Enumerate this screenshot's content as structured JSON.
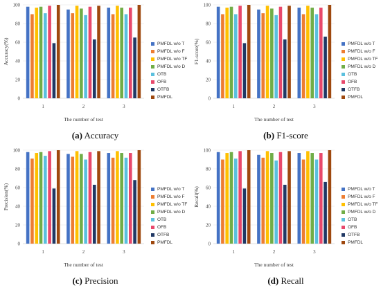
{
  "chart_data": [
    {
      "type": "bar",
      "caption_letter": "(a)",
      "caption_text": "Accuracy",
      "ylabel": "Accuracy(%)",
      "xlabel": "The number of test",
      "categories": [
        "1",
        "2",
        "3"
      ],
      "ylim": [
        0,
        100
      ],
      "yticks": [
        0,
        20,
        40,
        60,
        80,
        100
      ],
      "grid": true,
      "legend_position": "right",
      "series": [
        {
          "name": "PMFDL w/o T",
          "color": "#4472c4",
          "values": [
            98,
            95,
            97
          ]
        },
        {
          "name": "PMFDL w/o F",
          "color": "#ed7d31",
          "values": [
            90,
            91,
            90
          ]
        },
        {
          "name": "PMFDL w/o TF",
          "color": "#ffc000",
          "values": [
            97,
            99,
            99
          ]
        },
        {
          "name": "PMFDL w/o D",
          "color": "#70ad47",
          "values": [
            98,
            96,
            97
          ]
        },
        {
          "name": "OTB",
          "color": "#5bc0de",
          "values": [
            91,
            89,
            90
          ]
        },
        {
          "name": "OFB",
          "color": "#e8486b",
          "values": [
            99,
            98,
            97
          ]
        },
        {
          "name": "OTFB",
          "color": "#203864",
          "values": [
            59,
            63,
            65
          ]
        },
        {
          "name": "PMFDL",
          "color": "#9e480e",
          "values": [
            100,
            99,
            100
          ]
        }
      ]
    },
    {
      "type": "bar",
      "caption_letter": "(b)",
      "caption_text": "F1-score",
      "ylabel": "F1-score(%)",
      "xlabel": "The number of test",
      "categories": [
        "1",
        "2",
        "3"
      ],
      "ylim": [
        0,
        100
      ],
      "yticks": [
        0,
        20,
        40,
        60,
        80,
        100
      ],
      "grid": true,
      "legend_position": "right",
      "series": [
        {
          "name": "PMFDL w/o T",
          "color": "#4472c4",
          "values": [
            98,
            95,
            97
          ]
        },
        {
          "name": "PMFDL w/o F",
          "color": "#ed7d31",
          "values": [
            90,
            91,
            90
          ]
        },
        {
          "name": "PMFDL w/o TF",
          "color": "#ffc000",
          "values": [
            97,
            99,
            99
          ]
        },
        {
          "name": "PMFDL w/o D",
          "color": "#70ad47",
          "values": [
            98,
            96,
            97
          ]
        },
        {
          "name": "OTB",
          "color": "#5bc0de",
          "values": [
            90,
            89,
            90
          ]
        },
        {
          "name": "OFB",
          "color": "#e8486b",
          "values": [
            99,
            98,
            97
          ]
        },
        {
          "name": "OTFB",
          "color": "#203864",
          "values": [
            59,
            63,
            66
          ]
        },
        {
          "name": "PMFDL",
          "color": "#9e480e",
          "values": [
            100,
            99,
            100
          ]
        }
      ]
    },
    {
      "type": "bar",
      "caption_letter": "(c)",
      "caption_text": "Precision",
      "ylabel": "Precision(%)",
      "xlabel": "The number of test",
      "categories": [
        "1",
        "2",
        "3"
      ],
      "ylim": [
        0,
        100
      ],
      "yticks": [
        0,
        20,
        40,
        60,
        80,
        100
      ],
      "grid": true,
      "legend_position": "right",
      "series": [
        {
          "name": "PMFDL w/o T",
          "color": "#4472c4",
          "values": [
            98,
            96,
            97
          ]
        },
        {
          "name": "PMFDL w/o F",
          "color": "#ed7d31",
          "values": [
            91,
            93,
            92
          ]
        },
        {
          "name": "PMFDL w/o TF",
          "color": "#ffc000",
          "values": [
            97,
            99,
            99
          ]
        },
        {
          "name": "PMFDL w/o D",
          "color": "#70ad47",
          "values": [
            98,
            96,
            97
          ]
        },
        {
          "name": "OTB",
          "color": "#5bc0de",
          "values": [
            94,
            90,
            92
          ]
        },
        {
          "name": "OFB",
          "color": "#e8486b",
          "values": [
            99,
            98,
            97
          ]
        },
        {
          "name": "OTFB",
          "color": "#203864",
          "values": [
            59,
            63,
            68
          ]
        },
        {
          "name": "PMFDL",
          "color": "#9e480e",
          "values": [
            100,
            99,
            100
          ]
        }
      ]
    },
    {
      "type": "bar",
      "caption_letter": "(d)",
      "caption_text": "Recall",
      "ylabel": "Recall(%)",
      "xlabel": "The number of test",
      "categories": [
        "1",
        "2",
        "3"
      ],
      "ylim": [
        0,
        100
      ],
      "yticks": [
        0,
        20,
        40,
        60,
        80,
        100
      ],
      "grid": true,
      "legend_position": "right",
      "series": [
        {
          "name": "PMFDL w/o T",
          "color": "#4472c4",
          "values": [
            98,
            95,
            97
          ]
        },
        {
          "name": "PMFDL w/o F",
          "color": "#ed7d31",
          "values": [
            90,
            92,
            90
          ]
        },
        {
          "name": "PMFDL w/o TF",
          "color": "#ffc000",
          "values": [
            97,
            99,
            99
          ]
        },
        {
          "name": "PMFDL w/o D",
          "color": "#70ad47",
          "values": [
            98,
            97,
            97
          ]
        },
        {
          "name": "OTB",
          "color": "#5bc0de",
          "values": [
            91,
            89,
            90
          ]
        },
        {
          "name": "OFB",
          "color": "#e8486b",
          "values": [
            99,
            98,
            97
          ]
        },
        {
          "name": "OTFB",
          "color": "#203864",
          "values": [
            59,
            63,
            66
          ]
        },
        {
          "name": "PMFDL",
          "color": "#9e480e",
          "values": [
            100,
            99,
            100
          ]
        }
      ]
    }
  ]
}
